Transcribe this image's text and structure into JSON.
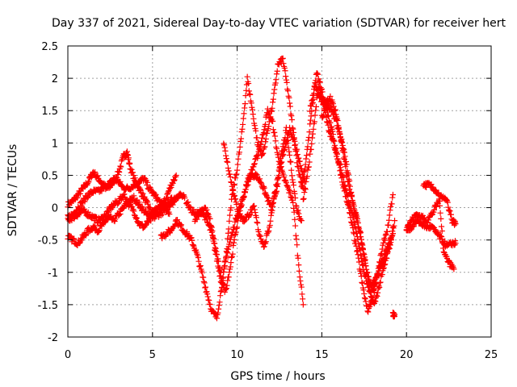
{
  "chart_data": {
    "type": "scatter",
    "title": "Day 337 of 2021, Sidereal Day-to-day VTEC variation (SDTVAR) for receiver hert",
    "xlabel": "GPS time / hours",
    "ylabel": "SDTVAR / TECUs",
    "xlim": [
      0,
      25
    ],
    "ylim": [
      -2,
      2.5
    ],
    "xticks": [
      "0",
      "5",
      "10",
      "15",
      "20",
      "25"
    ],
    "yticks": [
      "-2",
      "-1.5",
      "-1",
      "-0.5",
      "0",
      "0.5",
      "1",
      "1.5",
      "2",
      "2.5"
    ],
    "grid": true,
    "marker": "+",
    "color": "#ff0000",
    "series": [
      {
        "x": [
          0.0,
          0.3,
          0.6,
          0.9,
          1.2,
          1.5,
          1.8,
          2.1,
          2.4,
          2.7,
          3.0,
          3.3,
          3.5,
          3.7,
          4.0,
          4.3,
          4.6,
          4.9,
          5.2,
          5.5,
          5.8,
          6.1,
          6.4
        ],
        "values": [
          0.05,
          0.1,
          0.2,
          0.3,
          0.4,
          0.55,
          0.45,
          0.35,
          0.3,
          0.4,
          0.55,
          0.8,
          0.85,
          0.6,
          0.4,
          0.25,
          0.1,
          -0.05,
          -0.1,
          0.0,
          0.15,
          0.35,
          0.5
        ]
      },
      {
        "x": [
          0.0,
          0.3,
          0.6,
          0.9,
          1.2,
          1.5,
          1.8,
          2.1,
          2.4,
          2.7,
          3.0,
          3.3,
          3.6,
          3.9,
          4.2,
          4.5,
          4.8,
          5.1,
          5.4,
          5.7,
          6.0,
          6.3,
          6.6,
          6.9
        ],
        "values": [
          -0.45,
          -0.5,
          -0.55,
          -0.45,
          -0.35,
          -0.3,
          -0.35,
          -0.25,
          -0.15,
          -0.2,
          -0.1,
          0.0,
          0.1,
          0.15,
          0.05,
          -0.05,
          -0.15,
          -0.05,
          0.0,
          0.05,
          0.1,
          0.15,
          0.2,
          0.15
        ]
      },
      {
        "x": [
          0.0,
          0.3,
          0.6,
          0.9,
          1.2,
          1.5,
          1.8,
          2.1,
          2.4,
          2.7,
          3.0,
          3.3,
          3.6,
          3.9,
          4.2,
          4.5,
          4.8,
          5.1,
          5.4,
          5.7,
          6.0
        ],
        "values": [
          -0.15,
          -0.1,
          0.0,
          0.1,
          0.2,
          0.25,
          0.25,
          0.3,
          0.35,
          0.45,
          0.4,
          0.3,
          0.3,
          0.35,
          0.4,
          0.45,
          0.3,
          0.2,
          0.1,
          0.0,
          -0.1
        ]
      },
      {
        "x": [
          0.0,
          0.3,
          0.6,
          0.9,
          1.2,
          1.5,
          1.8,
          2.1,
          2.4,
          2.7,
          3.0,
          3.3,
          3.6,
          3.9,
          4.2,
          4.5,
          4.8,
          5.1,
          5.4,
          5.7,
          6.0,
          6.3
        ],
        "values": [
          -0.2,
          -0.15,
          -0.1,
          -0.05,
          -0.1,
          -0.15,
          -0.2,
          -0.15,
          -0.05,
          0.05,
          0.1,
          0.2,
          0.05,
          -0.05,
          -0.25,
          -0.3,
          -0.2,
          -0.15,
          -0.1,
          -0.05,
          0.05,
          0.1
        ]
      },
      {
        "x": [
          5.5,
          5.8,
          6.1,
          6.4,
          6.7,
          7.0,
          7.3,
          7.6,
          7.9,
          8.2,
          8.5,
          8.8,
          9.1,
          9.4,
          9.7,
          10.0,
          10.3,
          10.6,
          10.9,
          11.2,
          11.5,
          11.8,
          12.1,
          12.4,
          12.7,
          13.0,
          13.3,
          13.6,
          13.9
        ],
        "values": [
          -0.45,
          -0.4,
          -0.35,
          -0.2,
          -0.3,
          -0.4,
          -0.5,
          -0.7,
          -1.0,
          -1.3,
          -1.6,
          -1.7,
          -1.2,
          -0.7,
          -0.4,
          -0.1,
          0.1,
          0.4,
          0.6,
          0.8,
          1.1,
          1.5,
          1.3,
          0.8,
          0.5,
          0.3,
          0.1,
          -0.8,
          -1.5
        ]
      },
      {
        "x": [
          7.0,
          7.3,
          7.6,
          7.9,
          8.2,
          8.5,
          8.8,
          9.1,
          9.4,
          9.7,
          10.0,
          10.3,
          10.6,
          10.9,
          11.2,
          11.5,
          11.8,
          12.1,
          12.4,
          12.7,
          13.0,
          13.3,
          13.6,
          13.9
        ],
        "values": [
          0.1,
          -0.05,
          -0.1,
          -0.05,
          -0.2,
          -0.4,
          -0.8,
          -1.2,
          -0.6,
          0.2,
          0.6,
          1.2,
          2.0,
          1.5,
          1.0,
          0.8,
          1.2,
          1.6,
          2.2,
          2.3,
          1.8,
          1.2,
          0.6,
          0.3
        ]
      },
      {
        "x": [
          7.5,
          7.8,
          8.1,
          8.4,
          8.7,
          9.0,
          9.3,
          9.6,
          9.9,
          10.2,
          10.5,
          10.8,
          11.1,
          11.4,
          11.7,
          12.0,
          12.3,
          12.6,
          12.9,
          13.2,
          13.5,
          13.8
        ],
        "values": [
          -0.2,
          -0.1,
          0.0,
          -0.2,
          -0.6,
          -1.0,
          -1.3,
          -0.9,
          -0.4,
          0.0,
          0.3,
          0.5,
          0.5,
          0.4,
          0.2,
          0.0,
          0.2,
          0.8,
          1.2,
          0.6,
          0.0,
          -0.2
        ]
      },
      {
        "x": [
          9.2,
          9.5,
          9.8,
          10.1,
          10.4,
          10.7,
          11.0,
          11.3,
          11.6,
          11.9,
          12.2,
          12.5,
          12.8,
          13.1,
          13.4,
          13.7,
          14.0
        ],
        "values": [
          1.0,
          0.6,
          0.2,
          -0.1,
          -0.2,
          -0.1,
          0.0,
          -0.4,
          -0.6,
          -0.3,
          0.2,
          0.6,
          0.9,
          1.2,
          1.0,
          0.7,
          0.4
        ]
      },
      {
        "x": [
          13.8,
          14.1,
          14.4,
          14.7,
          15.0,
          15.3,
          15.6,
          15.9,
          16.2,
          16.5,
          16.8,
          17.1,
          17.4,
          17.7,
          18.0,
          18.3,
          18.6,
          18.9,
          19.2
        ],
        "values": [
          0.3,
          0.8,
          1.5,
          2.1,
          1.8,
          1.5,
          1.2,
          0.8,
          0.4,
          0.1,
          -0.3,
          -0.7,
          -1.2,
          -1.6,
          -1.4,
          -1.0,
          -0.6,
          -0.3,
          0.2
        ]
      },
      {
        "x": [
          13.9,
          14.2,
          14.5,
          14.8,
          15.1,
          15.4,
          15.7,
          16.0,
          16.3,
          16.6,
          16.9,
          17.2,
          17.5,
          17.8,
          18.1,
          18.4,
          18.7,
          19.0,
          19.3
        ],
        "values": [
          0.1,
          0.6,
          1.2,
          1.9,
          1.6,
          1.2,
          1.0,
          0.7,
          0.4,
          0.1,
          -0.2,
          -0.6,
          -1.0,
          -1.3,
          -1.5,
          -1.2,
          -0.9,
          -0.6,
          -0.2
        ]
      },
      {
        "x": [
          14.3,
          14.6,
          14.9,
          15.2,
          15.5,
          15.8,
          16.1,
          16.4,
          16.7,
          17.0,
          17.3,
          17.6,
          17.9,
          18.2,
          18.5,
          18.8,
          19.1
        ],
        "values": [
          1.5,
          1.9,
          1.7,
          1.6,
          1.7,
          1.5,
          1.1,
          0.6,
          0.2,
          -0.1,
          -0.4,
          -0.9,
          -1.2,
          -1.1,
          -0.9,
          -0.7,
          -0.5
        ]
      },
      {
        "x": [
          15.0,
          15.3,
          15.6,
          15.9,
          16.2,
          16.5,
          16.8,
          17.1,
          17.4,
          17.7,
          18.0,
          18.3,
          18.6,
          18.9,
          19.2
        ],
        "values": [
          1.4,
          1.6,
          1.5,
          1.3,
          1.0,
          0.6,
          0.1,
          -0.2,
          -0.6,
          -1.1,
          -1.3,
          -1.0,
          -0.8,
          -0.6,
          -0.4
        ]
      },
      {
        "x": [
          19.2,
          19.3
        ],
        "values": [
          -1.65,
          -1.65
        ]
      },
      {
        "x": [
          20.0,
          20.3,
          20.6,
          20.9,
          21.2,
          21.5,
          21.8,
          22.1,
          22.4,
          22.7,
          22.9
        ],
        "values": [
          -0.3,
          -0.2,
          -0.1,
          -0.15,
          -0.2,
          -0.1,
          0.05,
          0.2,
          0.1,
          -0.2,
          -0.25
        ]
      },
      {
        "x": [
          20.0,
          20.3,
          20.6,
          20.9,
          21.2,
          21.5,
          21.8,
          22.1,
          22.4,
          22.7,
          22.9
        ],
        "values": [
          -0.35,
          -0.3,
          -0.2,
          -0.25,
          -0.3,
          -0.3,
          -0.4,
          -0.5,
          -0.6,
          -0.55,
          -0.55
        ]
      },
      {
        "x": [
          21.0,
          21.3,
          21.6,
          21.9,
          22.2,
          22.5,
          22.8
        ],
        "values": [
          0.35,
          0.35,
          0.3,
          0.2,
          -0.7,
          -0.85,
          -0.95
        ]
      }
    ]
  }
}
